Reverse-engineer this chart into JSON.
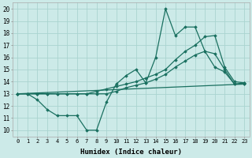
{
  "title": "",
  "xlabel": "Humidex (Indice chaleur)",
  "xlim": [
    -0.5,
    23.5
  ],
  "ylim": [
    9.5,
    20.5
  ],
  "background_color": "#cceae8",
  "grid_color": "#aad4d0",
  "line_color": "#1a7060",
  "xticks": [
    0,
    1,
    2,
    3,
    4,
    5,
    6,
    7,
    8,
    9,
    10,
    11,
    12,
    13,
    14,
    15,
    16,
    17,
    18,
    19,
    20,
    21,
    22,
    23
  ],
  "yticks": [
    10,
    11,
    12,
    13,
    14,
    15,
    16,
    17,
    18,
    19,
    20
  ],
  "lines": [
    {
      "x": [
        0,
        1,
        2,
        3,
        4,
        5,
        6,
        7,
        8,
        9,
        10,
        11,
        12,
        13,
        14,
        15,
        16,
        17,
        18,
        19,
        20,
        21,
        22,
        23
      ],
      "y": [
        13,
        13,
        12.5,
        11.7,
        11.2,
        11.2,
        11.2,
        10.0,
        10.0,
        12.3,
        13.8,
        14.5,
        15.0,
        13.9,
        16.0,
        20.0,
        17.8,
        18.5,
        18.5,
        16.5,
        15.2,
        14.8,
        13.8,
        13.9
      ]
    },
    {
      "x": [
        0,
        1,
        2,
        3,
        4,
        5,
        6,
        7,
        8,
        9,
        10,
        11,
        12,
        13,
        14,
        15,
        16,
        17,
        18,
        19,
        20,
        21,
        22,
        23
      ],
      "y": [
        13,
        13,
        13,
        13,
        13,
        13,
        13,
        13,
        13.2,
        13.4,
        13.6,
        13.8,
        14.0,
        14.3,
        14.6,
        15.0,
        15.8,
        16.5,
        17.0,
        17.7,
        17.8,
        15.2,
        14.0,
        13.9
      ]
    },
    {
      "x": [
        0,
        1,
        2,
        3,
        4,
        5,
        6,
        7,
        8,
        9,
        10,
        11,
        12,
        13,
        14,
        15,
        16,
        17,
        18,
        19,
        20,
        21,
        22,
        23
      ],
      "y": [
        13,
        13,
        13,
        13,
        13,
        13,
        13,
        13,
        13,
        13,
        13.2,
        13.5,
        13.7,
        13.9,
        14.2,
        14.6,
        15.2,
        15.7,
        16.2,
        16.5,
        16.3,
        15.0,
        13.8,
        13.8
      ]
    },
    {
      "x": [
        0,
        23
      ],
      "y": [
        13,
        13.8
      ]
    }
  ]
}
